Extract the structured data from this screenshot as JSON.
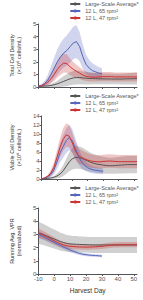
{
  "chart_data": [
    {
      "type": "line",
      "ylabel": "Total Cell Density\n(×10⁶ cells/mL)",
      "xlim": [
        -10,
        52
      ],
      "xticks": [
        -10,
        0,
        10,
        20,
        30,
        40,
        50
      ],
      "ylim": [
        0,
        5
      ],
      "yticks": [
        0,
        1,
        2,
        3,
        4,
        5
      ],
      "grid": false,
      "legend": "upper right",
      "tick_labels": "y",
      "series": [
        {
          "name": "Large-Scale Average*",
          "color": "#555555",
          "x": [
            -10,
            -8,
            -6,
            -4,
            -2,
            0,
            2,
            4,
            6,
            8,
            10,
            12,
            14,
            16,
            18,
            20,
            22,
            24,
            26,
            28,
            30,
            32,
            34,
            36,
            38,
            40,
            42,
            44,
            46,
            48,
            50,
            52
          ],
          "values": [
            0.05,
            0.06,
            0.07,
            0.09,
            0.12,
            0.18,
            0.25,
            0.35,
            0.45,
            0.55,
            0.65,
            0.72,
            0.75,
            0.75,
            0.72,
            0.7,
            0.68,
            0.67,
            0.66,
            0.65,
            0.65,
            0.64,
            0.64,
            0.63,
            0.63,
            0.63,
            0.63,
            0.64,
            0.65,
            0.65,
            0.66,
            0.67
          ],
          "std": [
            0.05,
            0.06,
            0.07,
            0.09,
            0.12,
            0.18,
            0.25,
            0.35,
            0.42,
            0.48,
            0.52,
            0.55,
            0.55,
            0.54,
            0.52,
            0.5,
            0.48,
            0.46,
            0.45,
            0.44,
            0.44,
            0.43,
            0.43,
            0.42,
            0.42,
            0.42,
            0.43,
            0.44,
            0.45,
            0.46,
            0.47,
            0.48
          ]
        },
        {
          "name": "12 L, 65 rpm²",
          "color": "#5566bb",
          "x": [
            -10,
            -8,
            -6,
            -4,
            -2,
            0,
            2,
            4,
            6,
            8,
            10,
            12,
            14,
            16,
            18,
            20,
            22,
            24,
            26,
            28,
            30
          ],
          "values": [
            0.05,
            0.12,
            0.28,
            0.55,
            1.0,
            1.5,
            2.0,
            2.4,
            2.7,
            2.9,
            3.2,
            3.5,
            3.6,
            3.2,
            2.4,
            1.8,
            1.5,
            1.3,
            1.2,
            1.1,
            1.05
          ],
          "std": [
            0.04,
            0.1,
            0.2,
            0.4,
            0.65,
            0.85,
            1.0,
            1.1,
            1.15,
            1.2,
            1.25,
            1.3,
            1.3,
            1.15,
            0.95,
            0.75,
            0.65,
            0.58,
            0.52,
            0.48,
            0.44
          ]
        },
        {
          "name": "12 L, 47 rpm²",
          "color": "#cc3333",
          "x": [
            -10,
            -8,
            -6,
            -4,
            -2,
            0,
            2,
            4,
            6,
            8,
            10,
            12,
            14,
            16,
            18,
            20,
            22,
            24,
            26,
            28,
            30,
            32,
            34,
            36,
            38,
            40,
            42,
            44,
            46,
            48,
            50,
            52
          ],
          "values": [
            0.05,
            0.1,
            0.2,
            0.38,
            0.65,
            1.0,
            1.4,
            1.7,
            1.9,
            1.85,
            1.6,
            1.4,
            1.25,
            1.1,
            0.95,
            0.85,
            0.8,
            0.78,
            0.78,
            0.8,
            0.82,
            0.82,
            0.82,
            0.82,
            0.8,
            0.8,
            0.8,
            0.8,
            0.8,
            0.8,
            0.8,
            0.8
          ],
          "std": [
            0.03,
            0.07,
            0.14,
            0.25,
            0.38,
            0.52,
            0.65,
            0.72,
            0.75,
            0.72,
            0.65,
            0.58,
            0.52,
            0.46,
            0.42,
            0.38,
            0.36,
            0.35,
            0.35,
            0.36,
            0.37,
            0.37,
            0.37,
            0.37,
            0.36,
            0.36,
            0.36,
            0.36,
            0.36,
            0.36,
            0.36,
            0.36
          ]
        }
      ]
    },
    {
      "type": "line",
      "ylabel": "Viable Cell Density\n(×10⁶ cells/mL)",
      "xlim": [
        -10,
        52
      ],
      "xticks": [
        -10,
        0,
        10,
        20,
        30,
        40,
        50
      ],
      "ylim": [
        0,
        14
      ],
      "yticks": [
        0,
        2,
        4,
        6,
        8,
        10,
        12,
        14
      ],
      "grid": false,
      "legend": "upper right",
      "tick_labels": "y",
      "series": [
        {
          "name": "Large-Scale Average*",
          "color": "#555555",
          "x": [
            -10,
            -8,
            -6,
            -4,
            -2,
            0,
            2,
            4,
            6,
            8,
            10,
            12,
            14,
            16,
            18,
            20,
            22,
            24,
            26,
            28,
            30,
            32,
            34,
            36,
            38,
            40,
            42,
            44,
            46,
            48,
            50,
            52
          ],
          "values": [
            0.05,
            0.1,
            0.15,
            0.22,
            0.38,
            0.65,
            1.1,
            1.8,
            2.8,
            3.8,
            4.5,
            4.8,
            4.8,
            4.6,
            4.3,
            4.0,
            3.7,
            3.5,
            3.3,
            3.2,
            3.1,
            3.0,
            2.95,
            2.95,
            3.0,
            3.05,
            3.1,
            3.15,
            3.2,
            3.2,
            3.2,
            3.2
          ],
          "std": [
            0.05,
            0.08,
            0.12,
            0.18,
            0.3,
            0.5,
            0.8,
            1.2,
            1.7,
            2.1,
            2.4,
            2.5,
            2.5,
            2.45,
            2.35,
            2.2,
            2.1,
            2.0,
            1.95,
            1.9,
            1.85,
            1.82,
            1.8,
            1.8,
            1.82,
            1.85,
            1.88,
            1.9,
            1.92,
            1.92,
            1.92,
            1.92
          ]
        },
        {
          "name": "12 L, 65 rpm²",
          "color": "#5566bb",
          "x": [
            -10,
            -8,
            -6,
            -4,
            -2,
            0,
            2,
            4,
            6,
            8,
            10,
            12,
            14,
            16,
            18,
            20,
            22,
            24,
            26,
            28,
            30
          ],
          "values": [
            0.05,
            0.2,
            0.5,
            1.0,
            2.0,
            3.8,
            5.8,
            7.2,
            8.5,
            9.2,
            8.5,
            6.8,
            5.0,
            3.8,
            3.0,
            2.5,
            2.2,
            2.0,
            1.9,
            1.8,
            1.7
          ],
          "std": [
            0.03,
            0.12,
            0.28,
            0.55,
            1.0,
            1.6,
            2.1,
            2.5,
            2.7,
            2.8,
            2.6,
            2.2,
            1.8,
            1.4,
            1.1,
            0.95,
            0.85,
            0.78,
            0.72,
            0.68,
            0.63
          ]
        },
        {
          "name": "12 L, 47 rpm²",
          "color": "#cc3333",
          "x": [
            -10,
            -8,
            -6,
            -4,
            -2,
            0,
            2,
            4,
            6,
            8,
            10,
            12,
            14,
            16,
            18,
            20,
            22,
            24,
            26,
            28,
            30,
            32,
            34,
            36,
            38,
            40,
            42,
            44,
            46,
            48,
            50,
            52
          ],
          "values": [
            0.05,
            0.25,
            0.6,
            1.3,
            2.6,
            4.8,
            7.0,
            8.8,
            9.8,
            9.5,
            8.0,
            6.2,
            5.2,
            4.8,
            4.5,
            4.2,
            4.0,
            3.9,
            3.85,
            3.8,
            3.9,
            3.95,
            4.0,
            3.95,
            3.9,
            3.85,
            3.85,
            3.85,
            3.85,
            3.85,
            3.85,
            3.85
          ],
          "std": [
            0.03,
            0.14,
            0.35,
            0.68,
            1.1,
            1.6,
            2.1,
            2.5,
            2.6,
            2.5,
            2.2,
            1.9,
            1.7,
            1.6,
            1.55,
            1.5,
            1.48,
            1.47,
            1.47,
            1.46,
            1.47,
            1.48,
            1.48,
            1.47,
            1.47,
            1.46,
            1.46,
            1.46,
            1.46,
            1.46,
            1.46,
            1.46
          ]
        }
      ]
    },
    {
      "type": "line",
      "ylabel": "Running Avg. VPR\n(normalized)",
      "xlabel": "Harvest Day",
      "xlim": [
        -10,
        52
      ],
      "xticks": [
        -10,
        0,
        10,
        20,
        30,
        40,
        50
      ],
      "ylim": [
        0,
        5
      ],
      "yticks": [
        0,
        1,
        2,
        3,
        4,
        5
      ],
      "grid": false,
      "legend": "upper right",
      "series": [
        {
          "name": "Large-Scale Average*",
          "color": "#555555",
          "x": [
            -10,
            -8,
            -6,
            -4,
            -2,
            0,
            2,
            4,
            6,
            8,
            10,
            12,
            14,
            16,
            18,
            20,
            22,
            24,
            26,
            28,
            30,
            32,
            34,
            36,
            38,
            40,
            42,
            44,
            46,
            48,
            50,
            52
          ],
          "values": [
            3.1,
            3.05,
            2.95,
            2.85,
            2.75,
            2.65,
            2.55,
            2.45,
            2.38,
            2.32,
            2.28,
            2.26,
            2.25,
            2.24,
            2.23,
            2.22,
            2.21,
            2.2,
            2.2,
            2.2,
            2.2,
            2.2,
            2.2,
            2.2,
            2.2,
            2.2,
            2.2,
            2.2,
            2.2,
            2.2,
            2.2,
            2.2
          ],
          "std": [
            0.85,
            0.82,
            0.8,
            0.77,
            0.74,
            0.72,
            0.7,
            0.68,
            0.66,
            0.64,
            0.63,
            0.62,
            0.62,
            0.61,
            0.61,
            0.6,
            0.6,
            0.6,
            0.6,
            0.6,
            0.6,
            0.6,
            0.6,
            0.6,
            0.6,
            0.6,
            0.6,
            0.6,
            0.6,
            0.6,
            0.6,
            0.6
          ]
        },
        {
          "name": "12 L, 65 rpm²",
          "color": "#5566bb",
          "x": [
            -10,
            -8,
            -6,
            -4,
            -2,
            0,
            2,
            4,
            6,
            8,
            10,
            12,
            14,
            16,
            18,
            20,
            22,
            24,
            26,
            28,
            30
          ],
          "values": [
            3.0,
            2.9,
            2.78,
            2.65,
            2.52,
            2.4,
            2.28,
            2.16,
            2.04,
            1.93,
            1.82,
            1.72,
            1.63,
            1.55,
            1.5,
            1.46,
            1.43,
            1.41,
            1.4,
            1.38,
            1.36
          ],
          "std": [
            0.25,
            0.24,
            0.23,
            0.22,
            0.21,
            0.2,
            0.19,
            0.18,
            0.17,
            0.16,
            0.15,
            0.14,
            0.13,
            0.12,
            0.115,
            0.11,
            0.108,
            0.105,
            0.103,
            0.101,
            0.099
          ]
        },
        {
          "name": "12 L, 47 rpm²",
          "color": "#cc3333",
          "x": [
            -10,
            -8,
            -6,
            -4,
            -2,
            0,
            2,
            4,
            6,
            8,
            10,
            12,
            14,
            16,
            18,
            20,
            22,
            24,
            26,
            28,
            30,
            32,
            34,
            36,
            38,
            40,
            42,
            44,
            46,
            48,
            50,
            52
          ],
          "values": [
            3.1,
            3.0,
            2.9,
            2.78,
            2.65,
            2.52,
            2.4,
            2.28,
            2.2,
            2.14,
            2.1,
            2.08,
            2.06,
            2.05,
            2.04,
            2.04,
            2.04,
            2.05,
            2.06,
            2.08,
            2.1,
            2.13,
            2.16,
            2.18,
            2.2,
            2.21,
            2.22,
            2.22,
            2.22,
            2.22,
            2.22,
            2.22
          ],
          "std": [
            0.35,
            0.33,
            0.31,
            0.29,
            0.27,
            0.26,
            0.25,
            0.24,
            0.23,
            0.22,
            0.21,
            0.21,
            0.2,
            0.2,
            0.2,
            0.2,
            0.2,
            0.2,
            0.2,
            0.2,
            0.2,
            0.2,
            0.2,
            0.2,
            0.2,
            0.2,
            0.2,
            0.2,
            0.2,
            0.2,
            0.2,
            0.2
          ]
        }
      ]
    }
  ]
}
